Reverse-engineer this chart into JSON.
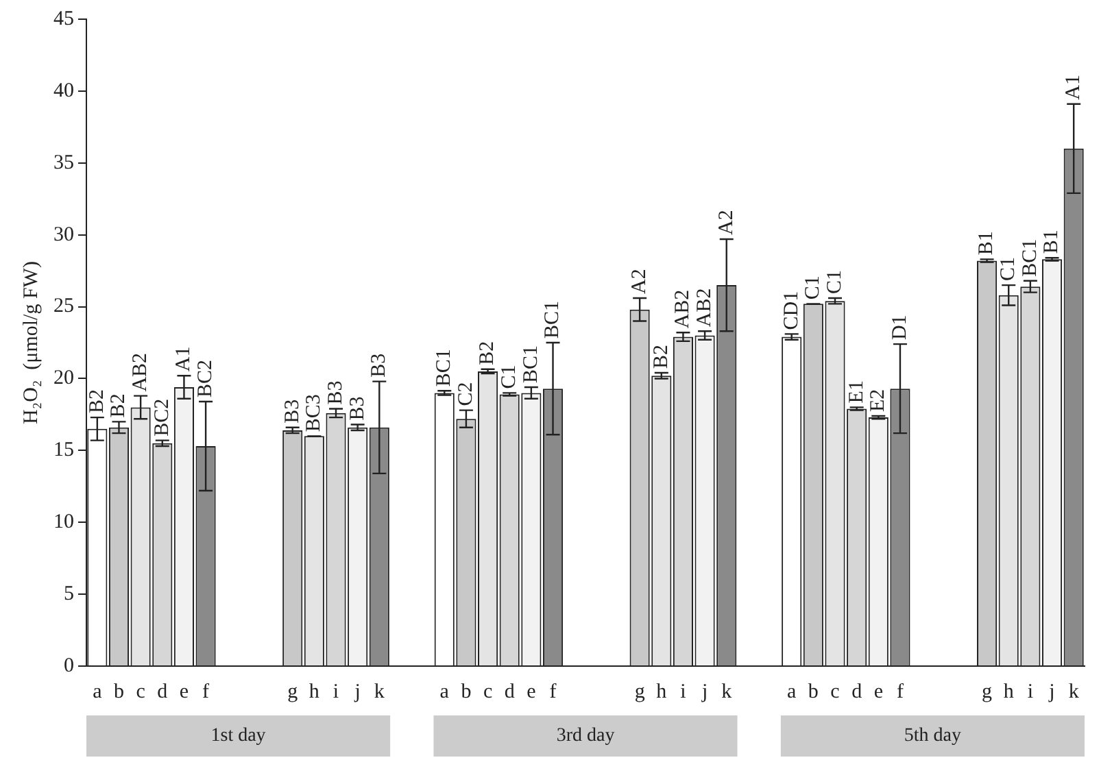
{
  "chart_data": {
    "type": "bar",
    "ylabel": "H₂O₂  (μmol/g FW)",
    "categories": [
      "a",
      "b",
      "c",
      "d",
      "e",
      "f",
      null,
      null,
      null,
      "g",
      "h",
      "i",
      "j",
      "k",
      null,
      null,
      "a",
      "b",
      "c",
      "d",
      "e",
      "f",
      null,
      null,
      null,
      "g",
      "h",
      "i",
      "j",
      "k",
      null,
      null,
      "a",
      "b",
      "c",
      "d",
      "e",
      "f",
      null,
      null,
      null,
      "g",
      "h",
      "i",
      "j",
      "k"
    ],
    "values": [
      16.5,
      16.6,
      18.0,
      15.5,
      19.4,
      15.3,
      null,
      null,
      null,
      16.4,
      16.0,
      17.6,
      16.6,
      16.6,
      null,
      null,
      19.0,
      17.2,
      20.5,
      18.9,
      19.0,
      19.3,
      null,
      null,
      null,
      24.8,
      20.2,
      22.9,
      23.0,
      26.5,
      null,
      null,
      22.9,
      25.2,
      25.4,
      17.9,
      17.3,
      19.3,
      null,
      null,
      null,
      28.2,
      25.8,
      26.4,
      28.3,
      36.0
    ],
    "errors": [
      0.8,
      0.4,
      0.8,
      0.2,
      0.8,
      3.1,
      null,
      null,
      null,
      0.2,
      0,
      0.3,
      0.2,
      3.2,
      null,
      null,
      0.15,
      0.6,
      0.15,
      0.1,
      0.4,
      3.2,
      null,
      null,
      null,
      0.8,
      0.2,
      0.3,
      0.3,
      3.2,
      null,
      null,
      0.2,
      0,
      0.2,
      0.1,
      0.1,
      3.1,
      null,
      null,
      null,
      0.1,
      0.7,
      0.4,
      0.1,
      3.1
    ],
    "value_labels": [
      "B2",
      "B2",
      "AB2",
      "BC2",
      "A1",
      "BC2",
      null,
      null,
      null,
      "B3",
      "BC3",
      "B3",
      "B3",
      "B3",
      null,
      null,
      "BC1",
      "C2",
      "B2",
      "C1",
      "BC1",
      "BC1",
      null,
      null,
      null,
      "A2",
      "B2",
      "AB2",
      "AB2",
      "A2",
      null,
      null,
      "CD1",
      "C1",
      "C1",
      "E1",
      "E2",
      "D1",
      null,
      null,
      null,
      "B1",
      "C1",
      "BC1",
      "B1",
      "A1"
    ],
    "colors": [
      "#ffffff",
      "#c8c8c8",
      "#e4e4e4",
      "#d6d6d6",
      "#f2f2f2",
      "#8a8a8a",
      null,
      null,
      null,
      "#c8c8c8",
      "#e4e4e4",
      "#d6d6d6",
      "#f2f2f2",
      "#8a8a8a",
      null,
      null,
      "#ffffff",
      "#c8c8c8",
      "#e4e4e4",
      "#d6d6d6",
      "#f2f2f2",
      "#8a8a8a",
      null,
      null,
      null,
      "#c8c8c8",
      "#e4e4e4",
      "#d6d6d6",
      "#f2f2f2",
      "#8a8a8a",
      null,
      null,
      "#ffffff",
      "#c8c8c8",
      "#e4e4e4",
      "#d6d6d6",
      "#f2f2f2",
      "#8a8a8a",
      null,
      null,
      null,
      "#c8c8c8",
      "#e4e4e4",
      "#d6d6d6",
      "#f2f2f2",
      "#8a8a8a"
    ],
    "ylim": [
      0,
      45
    ],
    "yticks": [
      0,
      5,
      10,
      15,
      20,
      25,
      30,
      35,
      40,
      45
    ],
    "grid": false,
    "legend": false,
    "annotations": [
      "1st day",
      "3rd day",
      "5th day"
    ]
  }
}
